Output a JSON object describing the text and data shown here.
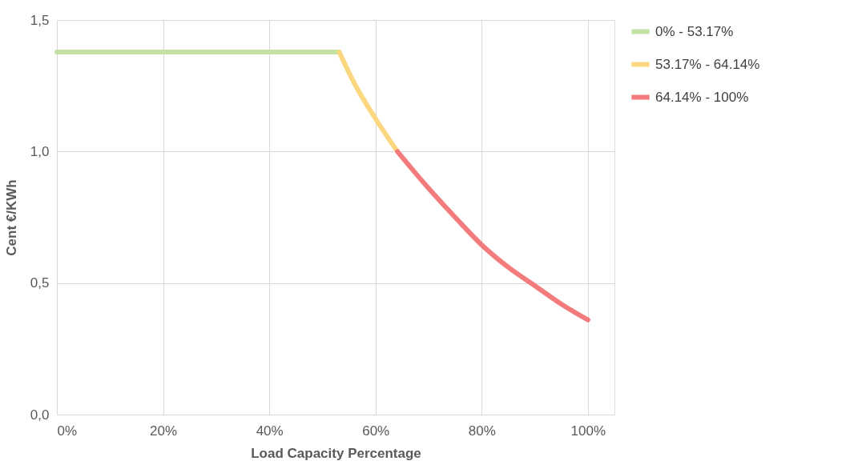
{
  "chart_data": {
    "type": "line",
    "xlabel": "Load Capacity Percentage",
    "ylabel": "Cent €/KWh",
    "xlim": [
      0,
      105
    ],
    "ylim": [
      0,
      1.5
    ],
    "xticks": [
      {
        "value": 0,
        "label": "0%"
      },
      {
        "value": 20,
        "label": "20%"
      },
      {
        "value": 40,
        "label": "40%"
      },
      {
        "value": 60,
        "label": "60%"
      },
      {
        "value": 80,
        "label": "80%"
      },
      {
        "value": 100,
        "label": "100%"
      }
    ],
    "yticks": [
      {
        "value": 0,
        "label": "0,0"
      },
      {
        "value": 0.5,
        "label": "0,5"
      },
      {
        "value": 1,
        "label": "1,0"
      },
      {
        "value": 1.5,
        "label": "1,5"
      }
    ],
    "grid": true,
    "legend": "right",
    "marker": "none",
    "line_style": "solid",
    "series": [
      {
        "name": "0% - 53.17%",
        "color": "#c5e0a4",
        "x": [
          0,
          53.17
        ],
        "values": [
          1.378,
          1.378
        ]
      },
      {
        "name": "53.17% - 64.14%",
        "color": "#fbd87f",
        "x": [
          53.17,
          56,
          60,
          64.14
        ],
        "values": [
          1.378,
          1.26,
          1.125,
          1.0
        ]
      },
      {
        "name": "64.14% - 100%",
        "color": "#f47b7b",
        "x": [
          64.14,
          70,
          75,
          80,
          85,
          90,
          95,
          100
        ],
        "values": [
          1.0,
          0.86,
          0.75,
          0.645,
          0.56,
          0.49,
          0.42,
          0.36
        ]
      }
    ]
  }
}
